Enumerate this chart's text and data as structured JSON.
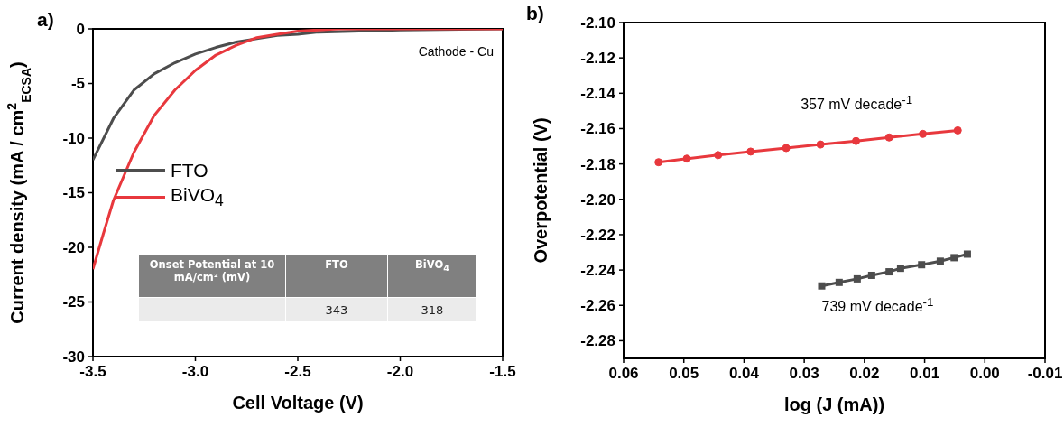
{
  "chart_data": [
    {
      "type": "line",
      "title": "a)",
      "xlabel": "Cell Voltage (V)",
      "ylabel": "Current density (mA / cm$^{2}$$_{ECSA}$)",
      "xlim": [
        -3.5,
        -1.5
      ],
      "xticks": [
        {
          "value": -3.5,
          "label": "-3.5"
        },
        {
          "value": -3,
          "label": "-3.0"
        },
        {
          "value": -2.5,
          "label": "-2.5"
        },
        {
          "value": -2,
          "label": "-2.0"
        },
        {
          "value": -1.5,
          "label": "-1.5"
        }
      ],
      "ylim": [
        -30,
        0
      ],
      "yticks": [
        -30,
        -25,
        -20,
        -15,
        -10,
        -5,
        0
      ],
      "legend": "left",
      "annotations": [
        "Cathode - Cu",
        "Onset  Potential at 10 mA/cm² (mV)",
        "FTO",
        "BiVO$_{4}$",
        "343",
        "318"
      ],
      "series": [
        {
          "name": "FTO",
          "color": "#4d4d4d",
          "x": [
            -3.5,
            -3.4,
            -3.3,
            -3.2,
            -3.1,
            -3.0,
            -2.9,
            -2.8,
            -2.7,
            -2.6,
            -2.5,
            -2.4,
            -2.2,
            -2.0,
            -1.5
          ],
          "values": [
            -12.0,
            -8.2,
            -5.6,
            -4.1,
            -3.1,
            -2.3,
            -1.7,
            -1.2,
            -0.9,
            -0.6,
            -0.5,
            -0.3,
            -0.2,
            -0.1,
            0
          ]
        },
        {
          "name": "BiVO$_{4}$",
          "color": "#e8383d",
          "x": [
            -3.5,
            -3.45,
            -3.4,
            -3.3,
            -3.2,
            -3.1,
            -3.0,
            -2.9,
            -2.8,
            -2.7,
            -2.6,
            -2.5,
            -2.4,
            -2.3,
            -1.5
          ],
          "values": [
            -22.0,
            -18.8,
            -15.7,
            -11.3,
            -7.9,
            -5.6,
            -3.8,
            -2.4,
            -1.5,
            -0.8,
            -0.5,
            -0.2,
            -0.1,
            0,
            0
          ]
        }
      ]
    },
    {
      "type": "line",
      "title": "b)",
      "xlabel": "log (J (mA))",
      "ylabel": "Overpotential (V)",
      "xlim": [
        0.06,
        -0.01
      ],
      "xticks": [
        {
          "value": 0.06,
          "label": "0.06"
        },
        {
          "value": 0.05,
          "label": "0.05"
        },
        {
          "value": 0.04,
          "label": "0.04"
        },
        {
          "value": 0.03,
          "label": "0.03"
        },
        {
          "value": 0.02,
          "label": "0.02"
        },
        {
          "value": 0.01,
          "label": "0.01"
        },
        {
          "value": 0,
          "label": "0.00"
        },
        {
          "value": -0.01,
          "label": "-0.01"
        }
      ],
      "ylim": [
        -2.29,
        -2.1
      ],
      "yticks": [
        {
          "value": -2.1,
          "label": "-2.10"
        },
        {
          "value": -2.12,
          "label": "-2.12"
        },
        {
          "value": -2.14,
          "label": "-2.14"
        },
        {
          "value": -2.16,
          "label": "-2.16"
        },
        {
          "value": -2.18,
          "label": "-2.18"
        },
        {
          "value": -2.2,
          "label": "-2.20"
        },
        {
          "value": -2.22,
          "label": "-2.22"
        },
        {
          "value": -2.24,
          "label": "-2.24"
        },
        {
          "value": -2.26,
          "label": "-2.26"
        },
        {
          "value": -2.28,
          "label": "-2.28"
        }
      ],
      "annotations": [
        "357 mV decade$^{-1}$",
        "739 mV decade$^{-1}$"
      ],
      "series": [
        {
          "color": "#e8383d",
          "marker": "circle",
          "x": [
            0.0542,
            0.0495,
            0.0443,
            0.0389,
            0.033,
            0.0273,
            0.0214,
            0.0159,
            0.0103,
            0.0045
          ],
          "values": [
            -2.179,
            -2.177,
            -2.175,
            -2.173,
            -2.171,
            -2.169,
            -2.167,
            -2.165,
            -2.163,
            -2.161
          ]
        },
        {
          "color": "#4d4d4d",
          "marker": "square",
          "x": [
            0.0271,
            0.0242,
            0.0212,
            0.0188,
            0.0159,
            0.014,
            0.0105,
            0.0074,
            0.0051,
            0.0029
          ],
          "values": [
            -2.249,
            -2.247,
            -2.245,
            -2.243,
            -2.241,
            -2.239,
            -2.237,
            -2.235,
            -2.233,
            -2.231
          ]
        }
      ]
    }
  ]
}
